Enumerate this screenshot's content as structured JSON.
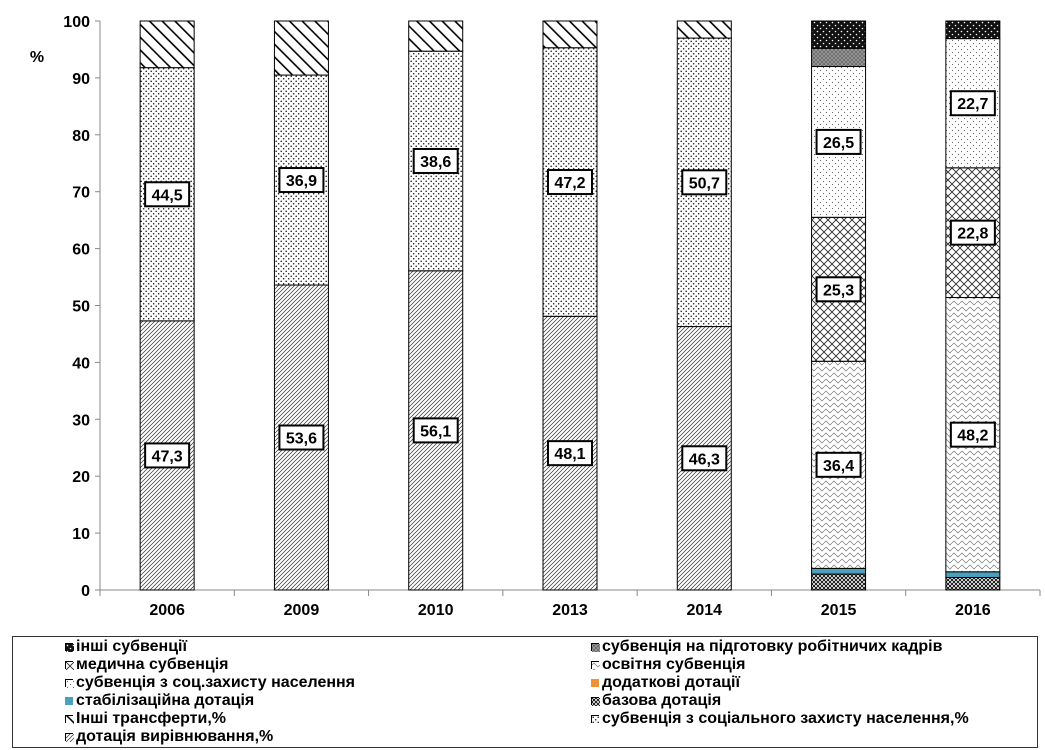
{
  "chart_data": {
    "type": "bar",
    "stacked": true,
    "ylabel": "%",
    "ylim": [
      0,
      100
    ],
    "yticks": [
      0,
      10,
      20,
      30,
      40,
      50,
      60,
      70,
      80,
      90,
      100
    ],
    "grid": false,
    "legend_position": "bottom",
    "categories": [
      "2006",
      "2009",
      "2010",
      "2013",
      "2014",
      "2015",
      "2016"
    ],
    "series": [
      {
        "name": "базова дотація",
        "pattern": "cross",
        "values": [
          0,
          0,
          0,
          0,
          0,
          2.8,
          2.2
        ]
      },
      {
        "name": "стабілізаційна дотація",
        "pattern": "solid",
        "color": "#4aa0bd",
        "values": [
          0,
          0,
          0,
          0,
          0,
          1.0,
          1.0
        ]
      },
      {
        "name": "додаткові дотації",
        "pattern": "solid",
        "color": "#f0913a",
        "values": [
          0,
          0,
          0,
          0,
          0,
          0,
          0
        ]
      },
      {
        "name": "дотація вирівнювання,%",
        "pattern": "diag-dense",
        "values": [
          47.3,
          53.6,
          56.1,
          48.1,
          46.3,
          0,
          0
        ]
      },
      {
        "name": "субвенція з соціального захисту населення,%",
        "pattern": "dots",
        "values": [
          44.5,
          36.9,
          38.6,
          47.2,
          50.7,
          0,
          0
        ]
      },
      {
        "name": "Інші трансферти,%",
        "pattern": "diag-wide",
        "values": [
          8.2,
          9.5,
          5.3,
          4.7,
          3.0,
          0,
          0
        ]
      },
      {
        "name": "освітня субвенція",
        "pattern": "wave",
        "values": [
          0,
          0,
          0,
          0,
          0,
          36.4,
          48.2
        ]
      },
      {
        "name": "медична субвенція",
        "pattern": "crosshatch",
        "values": [
          0,
          0,
          0,
          0,
          0,
          25.3,
          22.8
        ]
      },
      {
        "name": "субвенція з соц.захисту населення",
        "pattern": "light-dots",
        "values": [
          0,
          0,
          0,
          0,
          0,
          26.5,
          22.7
        ]
      },
      {
        "name": "субвенція на підготовку робітничих кадрів",
        "pattern": "gray-cross",
        "values": [
          0,
          0,
          0,
          0,
          0,
          3.2,
          0
        ]
      },
      {
        "name": "інші субвенції",
        "pattern": "dark-dots",
        "values": [
          0,
          0,
          0,
          0,
          0,
          4.8,
          3.1
        ]
      }
    ],
    "data_labels": [
      {
        "category": "2006",
        "series": "дотація вирівнювання,%",
        "text": "47,3"
      },
      {
        "category": "2006",
        "series": "субвенція з соціального захисту населення,%",
        "text": "44,5"
      },
      {
        "category": "2009",
        "series": "дотація вирівнювання,%",
        "text": "53,6"
      },
      {
        "category": "2009",
        "series": "субвенція з соціального захисту населення,%",
        "text": "36,9"
      },
      {
        "category": "2010",
        "series": "дотація вирівнювання,%",
        "text": "56,1"
      },
      {
        "category": "2010",
        "series": "субвенція з соціального захисту населення,%",
        "text": "38,6"
      },
      {
        "category": "2013",
        "series": "дотація вирівнювання,%",
        "text": "48,1"
      },
      {
        "category": "2013",
        "series": "субвенція з соціального захисту населення,%",
        "text": "47,2"
      },
      {
        "category": "2014",
        "series": "дотація вирівнювання,%",
        "text": "46,3"
      },
      {
        "category": "2014",
        "series": "субвенція з соціального захисту населення,%",
        "text": "50,7"
      },
      {
        "category": "2015",
        "series": "освітня субвенція",
        "text": "36,4"
      },
      {
        "category": "2015",
        "series": "медична субвенція",
        "text": "25,3"
      },
      {
        "category": "2015",
        "series": "субвенція з соц.захисту населення",
        "text": "26,5"
      },
      {
        "category": "2016",
        "series": "освітня субвенція",
        "text": "48,2"
      },
      {
        "category": "2016",
        "series": "медична субвенція",
        "text": "22,8"
      },
      {
        "category": "2016",
        "series": "субвенція з соц.захисту населення",
        "text": "22,7"
      }
    ],
    "legend": [
      {
        "text": "інші субвенції",
        "pattern": "dark-dots"
      },
      {
        "text": "субвенція на підготовку робітничих кадрів",
        "pattern": "gray-cross"
      },
      {
        "text": "медична субвенція",
        "pattern": "crosshatch"
      },
      {
        "text": "освітня субвенція",
        "pattern": "wave"
      },
      {
        "text": "субвенція з соц.захисту населення",
        "pattern": "light-dots"
      },
      {
        "text": "додаткові дотації",
        "pattern": "solid",
        "color": "#f0913a"
      },
      {
        "text": "стабілізаційна дотація",
        "pattern": "solid",
        "color": "#4aa0bd"
      },
      {
        "text": "базова дотація",
        "pattern": "cross"
      },
      {
        "text": "Інші трансферти,%",
        "pattern": "diag-wide"
      },
      {
        "text": "субвенція з соціального захисту населення,%",
        "pattern": "dots"
      },
      {
        "text": "дотація вирівнювання,%",
        "pattern": "diag-dense"
      }
    ]
  }
}
